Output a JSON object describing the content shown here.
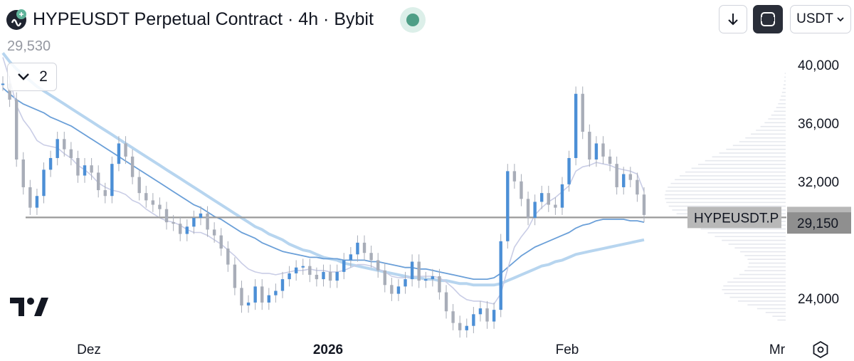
{
  "header": {
    "title": "HYPEUSDT Perpetual Contract · 4h · Bybit",
    "currency": "USDT",
    "ohlc_value": "29,530",
    "indicator_count": "2"
  },
  "colors": {
    "candle": "#4c8fd6",
    "candle_alt": "#a8adb8",
    "ma_fast": "#c9cde6",
    "ma_mid": "#6a9fd8",
    "ma_slow": "#b7d5ef",
    "ma_slowest": "#b7d5ef",
    "support_line": "#9a9a9a",
    "price_label_bg": "#9a9a9a",
    "accent_live": "#4e9e86"
  },
  "price_labels": {
    "symbol": "HYPEUSDT.P",
    "last_price": "29,530",
    "ma_price": "29,150"
  },
  "chart_data": {
    "type": "line",
    "title": "HYPEUSDT Perpetual Contract · 4h · Bybit",
    "xlabel": "",
    "ylabel": "",
    "ylim": [
      21500,
      41500
    ],
    "y_ticks": [
      "40,000",
      "36,000",
      "32,000",
      "24,000"
    ],
    "x_ticks": [
      "Dez",
      "2026",
      "Feb",
      "Mr"
    ],
    "horizontal_line": 29530,
    "series": [
      {
        "values": [
          38700,
          37600,
          33500,
          31600,
          30200,
          31000,
          32800,
          33600,
          34900,
          34200,
          33600,
          32400,
          33100,
          32600,
          31400,
          31000,
          33200,
          34600,
          33700,
          32300,
          31200,
          30700,
          30400,
          30100,
          29200,
          29100,
          28400,
          28900,
          29500,
          29800,
          28700,
          28300,
          27400,
          26300,
          24700,
          23500,
          23700,
          24800,
          23700,
          24200,
          24500,
          25300,
          25700,
          26100,
          26200,
          25600,
          25300,
          25800,
          25200,
          25800,
          26600,
          27000,
          27800,
          27100,
          26600,
          25900,
          24900,
          24300,
          24800,
          25300,
          26500,
          25200,
          25300,
          25500,
          24400,
          23100,
          22300,
          21800,
          22100,
          22900,
          23300,
          22400,
          23200,
          27900,
          32700,
          32000,
          30800,
          29500,
          30600,
          31200,
          30400,
          30200,
          31800,
          33600,
          38000,
          35400,
          33500,
          34600,
          33700,
          33200,
          31600,
          32500,
          32100,
          31100,
          29700
        ]
      },
      {
        "values": [
          40500,
          39000,
          37200,
          36200,
          35600,
          34800,
          34500,
          34400,
          34300,
          33900,
          33600,
          33100,
          32800,
          32400,
          31900,
          31600,
          31400,
          31300,
          31100,
          30700,
          30500,
          30100,
          29800,
          29500,
          29300,
          29200,
          29000,
          28700,
          28500,
          28500,
          28300,
          28000,
          27700,
          27300,
          26900,
          26400,
          26000,
          25800,
          25700,
          25700,
          25600,
          25700,
          25800,
          25900,
          25900,
          26000,
          25900,
          25900,
          25800,
          25800,
          25900,
          26100,
          26300,
          26300,
          26200,
          26000,
          25800,
          25500,
          25400,
          25400,
          25500,
          25500,
          25500,
          25500,
          25400,
          25100,
          24700,
          24200,
          23900,
          23800,
          23800,
          23700,
          23600,
          24300,
          26000,
          27500,
          28200,
          28800,
          29700,
          30200,
          30600,
          30900,
          31300,
          31700,
          32700,
          33000,
          33100,
          33300,
          33200,
          33100,
          32900,
          32800,
          32700,
          32500,
          31300
        ]
      },
      {
        "values": [
          38400,
          38000,
          37600,
          37300,
          37100,
          36900,
          36700,
          36400,
          36200,
          36000,
          35800,
          35500,
          35200,
          34900,
          34600,
          34300,
          34000,
          33700,
          33400,
          33100,
          32800,
          32500,
          32200,
          31900,
          31600,
          31300,
          31000,
          30700,
          30400,
          30200,
          29900,
          29600,
          29400,
          29100,
          28800,
          28500,
          28300,
          28100,
          27800,
          27600,
          27400,
          27200,
          27100,
          27000,
          26900,
          26800,
          26800,
          26700,
          26700,
          26700,
          26600,
          26600,
          26600,
          26600,
          26500,
          26500,
          26400,
          26300,
          26200,
          26100,
          26100,
          26000,
          26000,
          25900,
          25800,
          25700,
          25600,
          25500,
          25400,
          25300,
          25300,
          25300,
          25400,
          25700,
          26100,
          26500,
          26900,
          27200,
          27500,
          27700,
          27900,
          28100,
          28300,
          28500,
          28800,
          29000,
          29100,
          29300,
          29400,
          29400,
          29400,
          29400,
          29300,
          29300,
          29200
        ]
      },
      {
        "values": [
          40800,
          40200,
          39700,
          39300,
          38900,
          38500,
          38200,
          37900,
          37600,
          37300,
          37000,
          36700,
          36400,
          36100,
          35800,
          35500,
          35200,
          34900,
          34600,
          34300,
          34000,
          33700,
          33400,
          33100,
          32800,
          32500,
          32200,
          31900,
          31600,
          31300,
          31000,
          30700,
          30400,
          30100,
          29800,
          29500,
          29200,
          28900,
          28700,
          28400,
          28200,
          28000,
          27700,
          27500,
          27300,
          27200,
          27000,
          26800,
          26700,
          26600,
          26400,
          26300,
          26200,
          26100,
          26000,
          25900,
          25800,
          25700,
          25600,
          25500,
          25400,
          25400,
          25300,
          25300,
          25200,
          25200,
          25100,
          25000,
          25000,
          24900,
          24900,
          24900,
          24900,
          25000,
          25200,
          25400,
          25600,
          25800,
          26000,
          26200,
          26300,
          26500,
          26600,
          26800,
          27000,
          27100,
          27200,
          27300,
          27400,
          27500,
          27600,
          27700,
          27800,
          27900,
          28000
        ]
      }
    ]
  }
}
